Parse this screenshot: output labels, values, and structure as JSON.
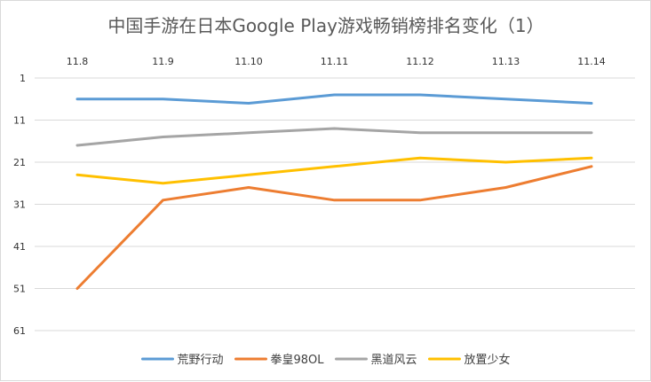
{
  "chart_data": {
    "type": "line",
    "title": "中国手游在日本Google Play游戏畅销榜排名变化（1）",
    "categories": [
      "11.8",
      "11.9",
      "11.10",
      "11.11",
      "11.12",
      "11.13",
      "11.14"
    ],
    "y_ticks": [
      "1",
      "11",
      "21",
      "31",
      "41",
      "51",
      "61"
    ],
    "ylim": [
      1,
      61
    ],
    "y_reversed": true,
    "grid": true,
    "legend_position": "bottom",
    "series": [
      {
        "name": "荒野行动",
        "color": "#5B9BD5",
        "values": [
          6,
          6,
          7,
          5,
          5,
          6,
          7
        ]
      },
      {
        "name": "拳皇98OL",
        "color": "#ED7D31",
        "values": [
          51,
          30,
          27,
          30,
          30,
          27,
          22
        ]
      },
      {
        "name": "黑道风云",
        "color": "#A5A5A5",
        "values": [
          17,
          15,
          14,
          13,
          14,
          14,
          14
        ]
      },
      {
        "name": "放置少女",
        "color": "#FFC000",
        "values": [
          24,
          26,
          24,
          22,
          20,
          21,
          20
        ]
      }
    ]
  }
}
